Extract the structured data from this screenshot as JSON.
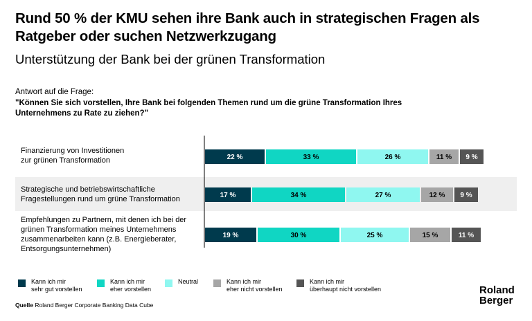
{
  "title": "Rund 50 % der KMU sehen ihre Bank auch in strategischen Fragen als Ratgeber oder suchen Netzwerkzugang",
  "subtitle": "Unterstützung der Bank bei der grünen Transformation",
  "question_intro": "Antwort auf die Frage:",
  "question": "\"Können Sie sich vorstellen, Ihre Bank bei folgenden Themen rund um die grüne Transformation Ihres Unternehmens zu Rate zu ziehen?\"",
  "source_label": "Quelle",
  "source_text": "Roland Berger Corporate Banking Data Cube",
  "logo": {
    "line1": "Roland",
    "line2": "Berger"
  },
  "colors": {
    "series": [
      "#003a4d",
      "#10d6c3",
      "#8ff7f0",
      "#a6a6a6",
      "#555555"
    ],
    "label_dark": "#ffffff",
    "label_light": "#000000",
    "row_shade": "#efefef"
  },
  "chart_data": {
    "type": "bar",
    "orientation": "horizontal",
    "stacked": true,
    "normalized": true,
    "categories": [
      "Finanzierung von Investitionen zur grünen Transformation",
      "Strategische und betriebswirtschaftliche Fragestellungen rund um grüne Transformation",
      "Empfehlungen zu Partnern, mit denen ich bei der grünen Transformation meines Unternehmens zusammenarbeiten kann (z.B. Energieberater, Entsorgungsunternehmen)"
    ],
    "series": [
      {
        "name": "Kann ich mir sehr gut vorstellen",
        "values": [
          22,
          17,
          19
        ]
      },
      {
        "name": "Kann ich mir eher vorstellen",
        "values": [
          33,
          34,
          30
        ]
      },
      {
        "name": "Neutral",
        "values": [
          26,
          27,
          25
        ]
      },
      {
        "name": "Kann ich mir eher nicht vorstellen",
        "values": [
          11,
          12,
          15
        ]
      },
      {
        "name": "Kann ich mir überhaupt nicht vorstellen",
        "values": [
          9,
          9,
          11
        ]
      }
    ],
    "unit": "%",
    "legend_position": "bottom"
  },
  "category_labels": [
    "Finanzierung von Investitionen\nzur grünen Transformation",
    "Strategische und betriebswirtschaftliche\nFragestellungen rund um grüne Transformation",
    "Empfehlungen zu Partnern, mit denen ich bei der\ngrünen Transformation meines Unternehmens\nzusammenarbeiten kann (z.B. Energieberater,\nEntsorgungsunternehmen)"
  ],
  "legend_labels": [
    "Kann ich mir\nsehr gut vorstellen",
    "Kann ich mir\neher vorstellen",
    "Neutral",
    "Kann ich mir\neher nicht vorstellen",
    "Kann ich mir\nüberhaupt nicht vorstellen"
  ]
}
